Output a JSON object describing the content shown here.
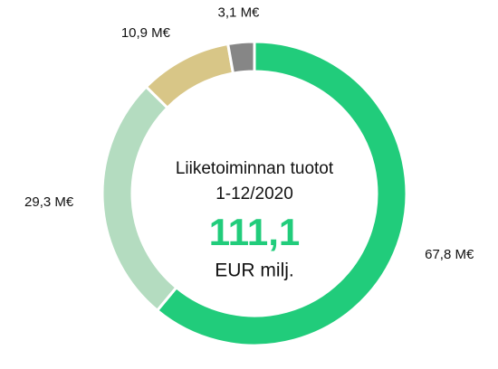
{
  "chart_data": {
    "type": "donut",
    "categories": [
      null,
      null,
      null,
      null
    ],
    "values": [
      67.8,
      29.3,
      10.9,
      3.1
    ],
    "value_labels": [
      "67,8 M€",
      "29,3 M€",
      "10,9 M€",
      "3,1 M€"
    ],
    "colors": [
      "#21cc7b",
      "#b4dcc0",
      "#d8c687",
      "#868686"
    ],
    "center_text": [
      "Liiketoiminnan tuotot",
      "1-12/2020"
    ],
    "center_value": "111,1",
    "center_unit": "EUR milj."
  }
}
